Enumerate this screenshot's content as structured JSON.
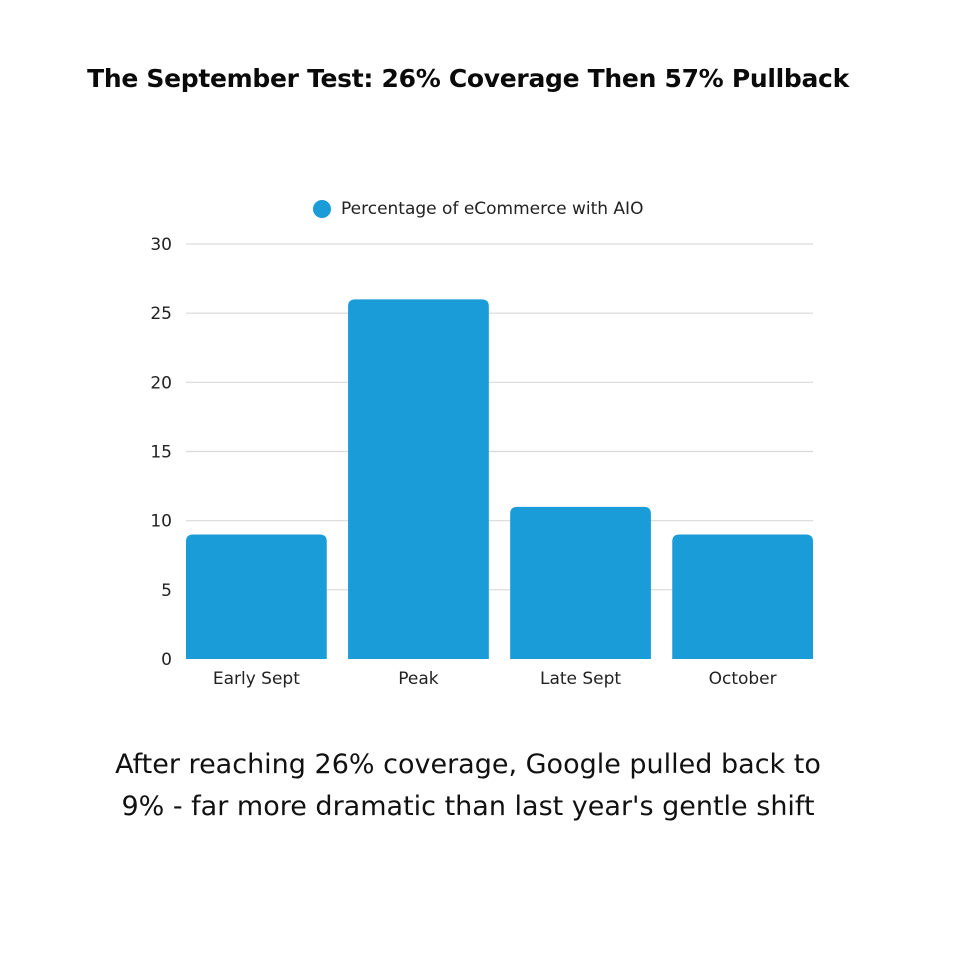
{
  "title": "The September Test: 26% Coverage Then 57% Pullback",
  "caption": "After reaching 26% coverage, Google pulled back to 9% - far more dramatic than last year's gentle shift",
  "colors": {
    "bar": "#1a9cd8",
    "grid": "#d9d9d9",
    "axis_text": "#222222"
  },
  "chart_data": {
    "type": "bar",
    "categories": [
      "Early Sept",
      "Peak",
      "Late Sept",
      "October"
    ],
    "series": [
      {
        "name": "Percentage of eCommerce with AIO",
        "values": [
          9,
          26,
          11,
          9
        ]
      }
    ],
    "yticks": [
      "0",
      "5",
      "10",
      "15",
      "20",
      "25",
      "30"
    ],
    "ylim": [
      0,
      30
    ],
    "grid": true,
    "legend_position": "top-center"
  }
}
